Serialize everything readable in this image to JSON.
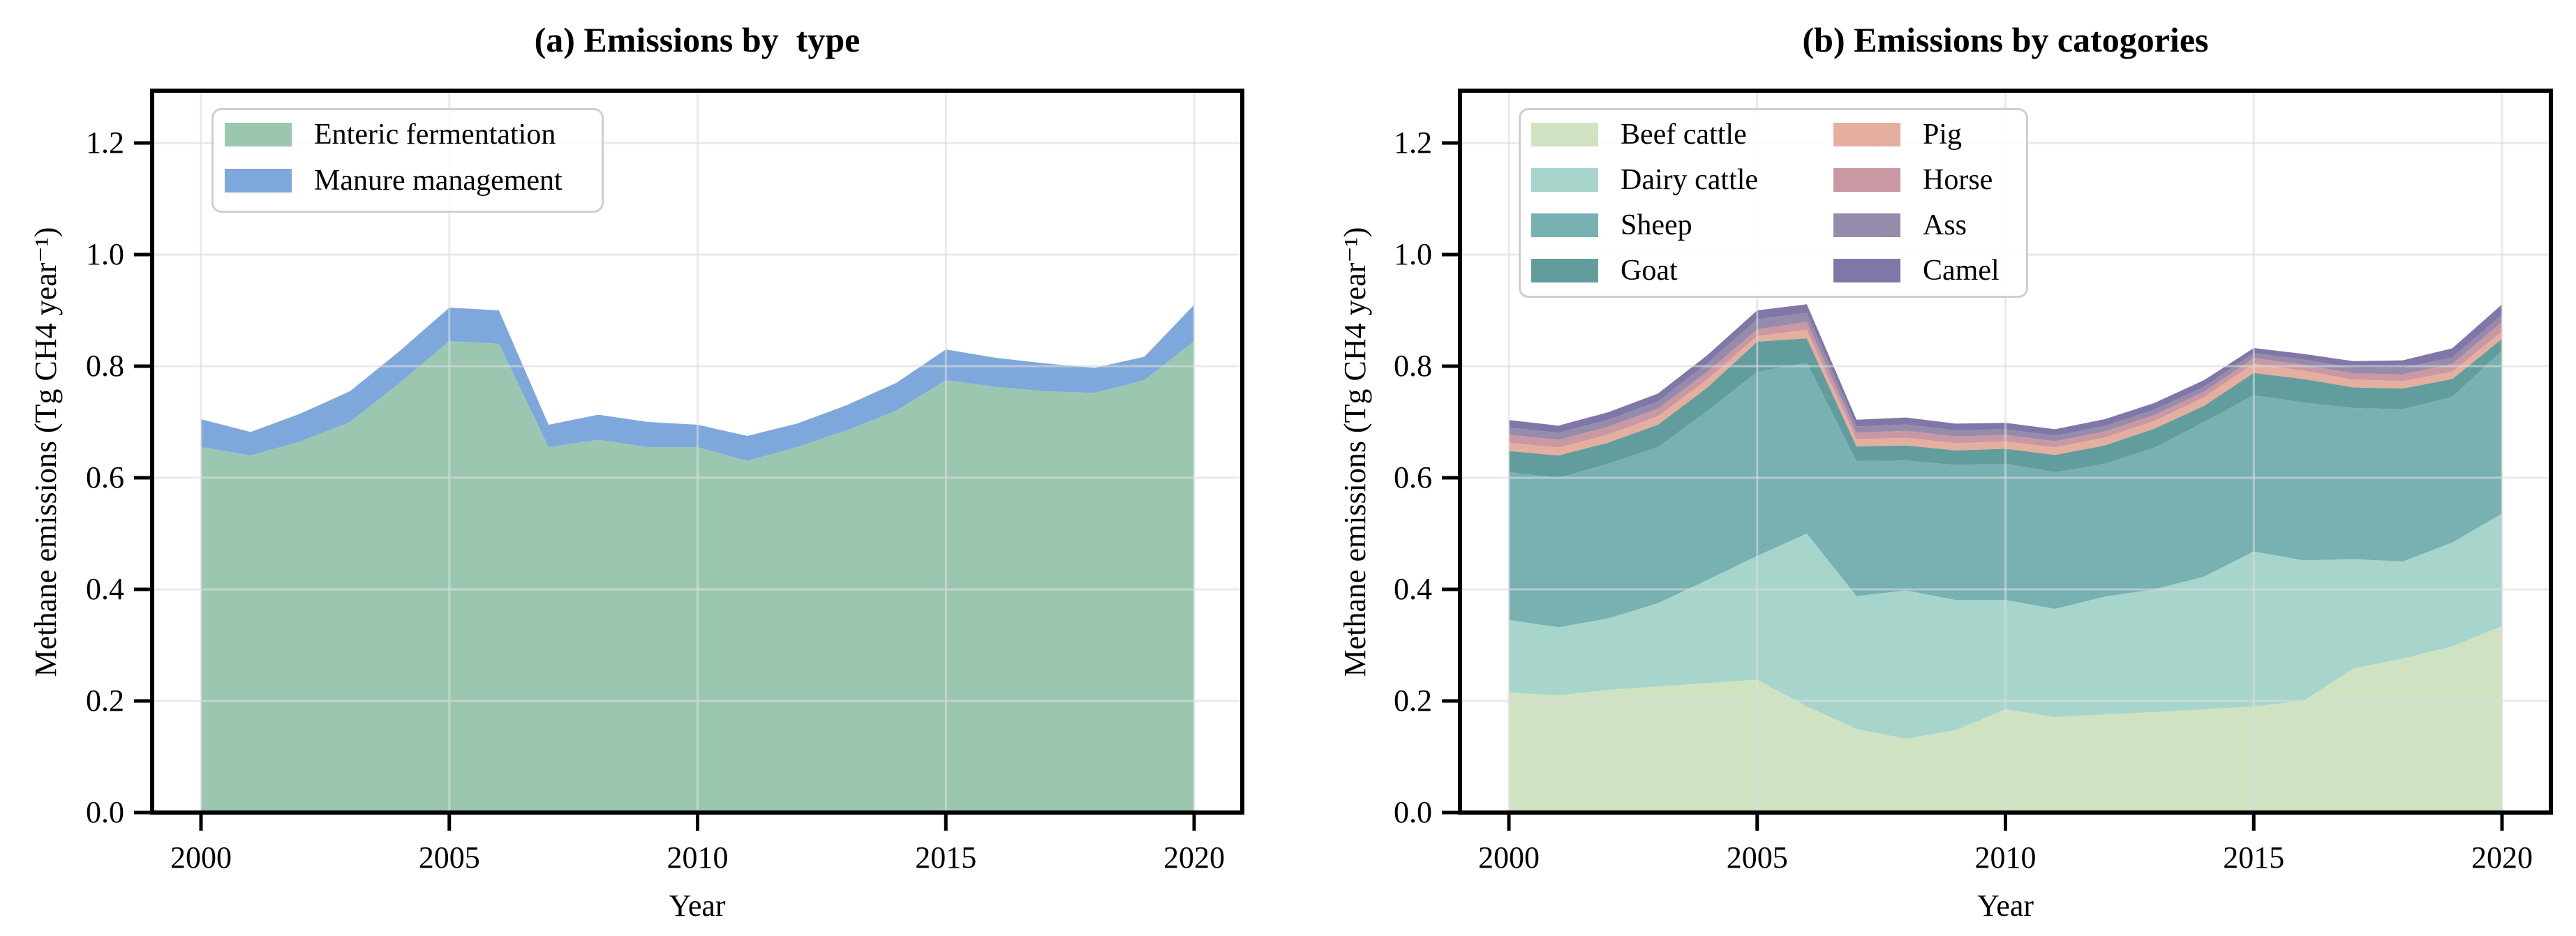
{
  "figure": {
    "background": "#ffffff",
    "frame_color": "#000000",
    "grid_color": "#dcdcdc"
  },
  "panels": [
    {
      "key": "a",
      "title": "(a) Emissions by  type",
      "xlabel": "Year",
      "ylabel": "Methane emissions (Tg CH4 year⁻¹)",
      "x_tick_labels": [
        "2000",
        "2005",
        "2010",
        "2015",
        "2020"
      ],
      "y_tick_labels": [
        "0.0",
        "0.2",
        "0.4",
        "0.6",
        "0.8",
        "1.0",
        "1.2"
      ],
      "legend_columns": 1
    },
    {
      "key": "b",
      "title": "(b) Emissions by catogories",
      "xlabel": "Year",
      "ylabel": "Methane emissions (Tg CH4 year⁻¹)",
      "x_tick_labels": [
        "2000",
        "2005",
        "2010",
        "2015",
        "2020"
      ],
      "y_tick_labels": [
        "0.0",
        "0.2",
        "0.4",
        "0.6",
        "0.8",
        "1.0",
        "1.2"
      ],
      "legend_columns": 2
    }
  ],
  "chart_data": [
    {
      "type": "area",
      "stacked": true,
      "title": "(a) Emissions by  type",
      "xlabel": "Year",
      "ylabel": "Methane emissions (Tg CH4 year⁻¹)",
      "grid": true,
      "legend_position": "upper left",
      "xlim": [
        1999,
        2021
      ],
      "ylim": [
        0,
        1.3
      ],
      "x": [
        2000,
        2001,
        2002,
        2003,
        2004,
        2005,
        2006,
        2007,
        2008,
        2009,
        2010,
        2011,
        2012,
        2013,
        2014,
        2015,
        2016,
        2017,
        2018,
        2019,
        2020
      ],
      "series": [
        {
          "name": "Enteric fermentation",
          "color": "#9bc7b1",
          "values": [
            0.655,
            0.64,
            0.665,
            0.7,
            0.77,
            0.845,
            0.84,
            0.655,
            0.668,
            0.655,
            0.655,
            0.63,
            0.655,
            0.685,
            0.72,
            0.775,
            0.763,
            0.755,
            0.752,
            0.775,
            0.845
          ]
        },
        {
          "name": "Manure management",
          "color": "#7ea8db",
          "values": [
            0.05,
            0.042,
            0.05,
            0.055,
            0.057,
            0.06,
            0.06,
            0.04,
            0.045,
            0.045,
            0.04,
            0.045,
            0.042,
            0.045,
            0.05,
            0.055,
            0.052,
            0.05,
            0.045,
            0.042,
            0.065
          ]
        }
      ]
    },
    {
      "type": "area",
      "stacked": true,
      "title": "(b) Emissions by catogories",
      "xlabel": "Year",
      "ylabel": "Methane emissions (Tg CH4 year⁻¹)",
      "grid": true,
      "legend_position": "upper left",
      "xlim": [
        1999,
        2021
      ],
      "ylim": [
        0,
        1.3
      ],
      "x": [
        2000,
        2001,
        2002,
        2003,
        2004,
        2005,
        2006,
        2007,
        2008,
        2009,
        2010,
        2011,
        2012,
        2013,
        2014,
        2015,
        2016,
        2017,
        2018,
        2019,
        2020
      ],
      "series": [
        {
          "name": "Beef cattle",
          "color": "#cfe3c2",
          "values": [
            0.215,
            0.21,
            0.22,
            0.226,
            0.232,
            0.238,
            0.19,
            0.15,
            0.132,
            0.148,
            0.185,
            0.171,
            0.176,
            0.18,
            0.185,
            0.19,
            0.2,
            0.258,
            0.276,
            0.298,
            0.334
          ]
        },
        {
          "name": "Dairy cattle",
          "color": "#a7d5cc",
          "values": [
            0.13,
            0.122,
            0.128,
            0.149,
            0.185,
            0.222,
            0.31,
            0.238,
            0.266,
            0.233,
            0.196,
            0.194,
            0.211,
            0.22,
            0.238,
            0.278,
            0.252,
            0.196,
            0.174,
            0.186,
            0.202
          ]
        },
        {
          "name": "Sheep",
          "color": "#77b1b2",
          "values": [
            0.265,
            0.268,
            0.277,
            0.28,
            0.303,
            0.33,
            0.306,
            0.242,
            0.233,
            0.242,
            0.244,
            0.245,
            0.238,
            0.254,
            0.277,
            0.28,
            0.283,
            0.271,
            0.273,
            0.261,
            0.292
          ]
        },
        {
          "name": "Goat",
          "color": "#629d9e",
          "values": [
            0.038,
            0.04,
            0.038,
            0.04,
            0.042,
            0.054,
            0.044,
            0.026,
            0.027,
            0.026,
            0.027,
            0.031,
            0.033,
            0.034,
            0.029,
            0.04,
            0.042,
            0.037,
            0.037,
            0.032,
            0.021
          ]
        },
        {
          "name": "Pig",
          "color": "#e4af9f",
          "values": [
            0.0145,
            0.014,
            0.0145,
            0.015,
            0.0145,
            0.01,
            0.015,
            0.013,
            0.0135,
            0.013,
            0.013,
            0.0135,
            0.014,
            0.014,
            0.015,
            0.0165,
            0.015,
            0.014,
            0.0135,
            0.013,
            0.013
          ]
        },
        {
          "name": "Horse",
          "color": "#ca98a2",
          "values": [
            0.0145,
            0.014,
            0.014,
            0.0138,
            0.0135,
            0.012,
            0.0145,
            0.012,
            0.0125,
            0.012,
            0.0115,
            0.011,
            0.011,
            0.0105,
            0.01,
            0.01,
            0.0105,
            0.011,
            0.012,
            0.014,
            0.017
          ]
        },
        {
          "name": "Ass",
          "color": "#978bac",
          "values": [
            0.013,
            0.0125,
            0.0125,
            0.013,
            0.0155,
            0.018,
            0.016,
            0.011,
            0.0115,
            0.011,
            0.0105,
            0.01,
            0.01,
            0.0095,
            0.009,
            0.009,
            0.0095,
            0.01,
            0.011,
            0.012,
            0.0128
          ]
        },
        {
          "name": "Camel",
          "color": "#8076a8",
          "values": [
            0.0135,
            0.013,
            0.0135,
            0.014,
            0.0145,
            0.016,
            0.0155,
            0.012,
            0.0125,
            0.012,
            0.0115,
            0.0115,
            0.012,
            0.012,
            0.012,
            0.009,
            0.01,
            0.012,
            0.014,
            0.016,
            0.019
          ]
        }
      ]
    }
  ]
}
